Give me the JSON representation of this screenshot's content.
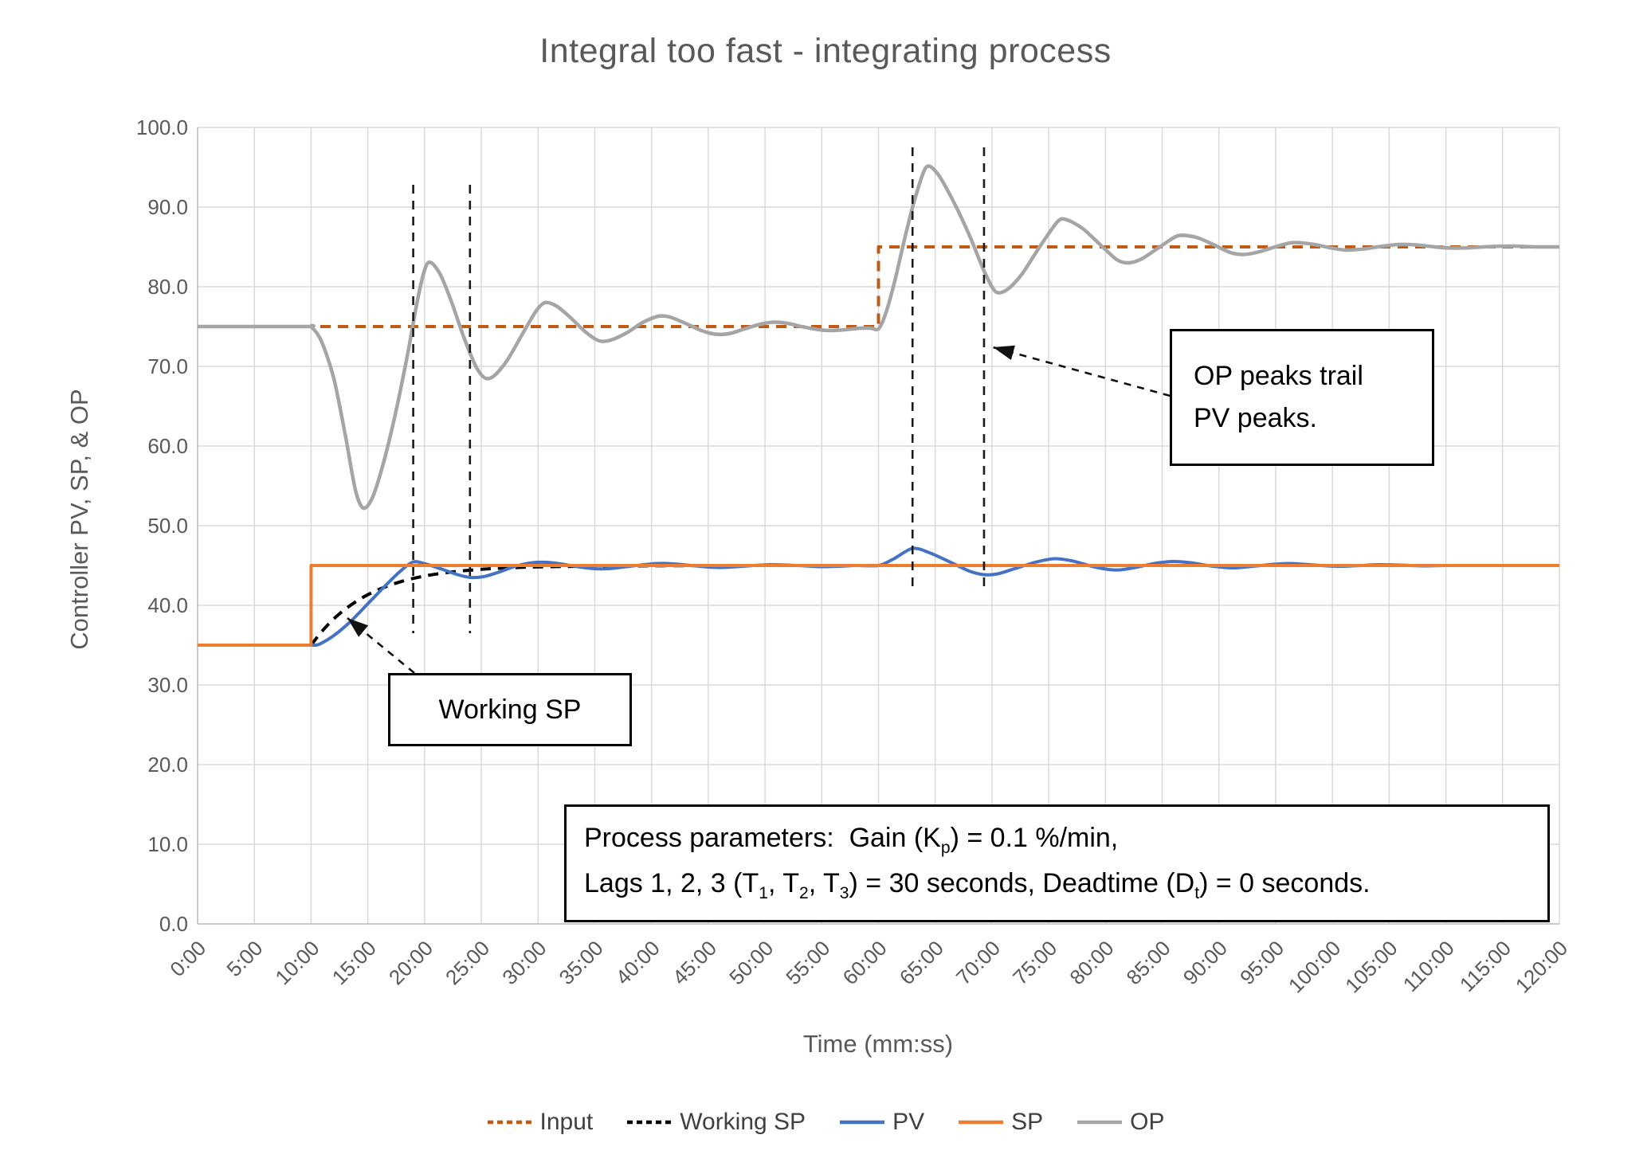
{
  "title": "Integral too fast - integrating process",
  "axes": {
    "x_title": "Time (mm:ss)",
    "y_title": "Controller PV, SP, & OP",
    "x_ticks": [
      "0:00",
      "5:00",
      "10:00",
      "15:00",
      "20:00",
      "25:00",
      "30:00",
      "35:00",
      "40:00",
      "45:00",
      "50:00",
      "55:00",
      "60:00",
      "65:00",
      "70:00",
      "75:00",
      "80:00",
      "85:00",
      "90:00",
      "95:00",
      "100:00",
      "105:00",
      "110:00",
      "115:00",
      "120:00"
    ],
    "y_ticks": [
      "0.0",
      "10.0",
      "20.0",
      "30.0",
      "40.0",
      "50.0",
      "60.0",
      "70.0",
      "80.0",
      "90.0",
      "100.0"
    ]
  },
  "colors": {
    "input": "#BE5B17",
    "working_sp": "#000000",
    "pv": "#4472C4",
    "sp": "#ED7D31",
    "op": "#A5A5A5",
    "gridline": "#D9D9D9",
    "axis_text": "#595959",
    "marker_line": "#1a1a1a"
  },
  "chart_data": {
    "type": "line",
    "title": "Integral too fast - integrating process",
    "xlabel": "Time (mm:ss)",
    "ylabel": "Controller PV, SP, & OP",
    "x_minutes_range": [
      0,
      120
    ],
    "x_tick_step_minutes": 5,
    "ylim": [
      0,
      100
    ],
    "y_tick_step": 10,
    "grid": true,
    "legend_position": "bottom",
    "series": [
      {
        "name": "Input",
        "color": "#BE5B17",
        "style": "dashed",
        "interp": "linear",
        "width": 4,
        "points": [
          [
            0,
            75
          ],
          [
            60,
            75
          ],
          [
            60,
            85
          ],
          [
            120,
            85
          ]
        ]
      },
      {
        "name": "Working SP",
        "color": "#000000",
        "style": "dashed",
        "interp": "smooth",
        "width": 4,
        "points": [
          [
            10,
            35
          ],
          [
            11,
            36.81
          ],
          [
            12,
            38.3
          ],
          [
            13,
            39.51
          ],
          [
            14,
            40.51
          ],
          [
            15,
            41.33
          ],
          [
            16,
            42.01
          ],
          [
            17,
            42.56
          ],
          [
            18,
            43.01
          ],
          [
            19,
            43.38
          ],
          [
            20,
            43.68
          ],
          [
            21,
            43.92
          ],
          [
            22,
            44.12
          ],
          [
            23,
            44.28
          ],
          [
            24,
            44.41
          ],
          [
            25,
            44.52
          ],
          [
            26,
            44.61
          ],
          [
            27,
            44.68
          ],
          [
            28,
            44.74
          ],
          [
            29,
            44.79
          ],
          [
            30,
            44.82
          ],
          [
            32,
            44.87
          ],
          [
            34,
            44.9
          ],
          [
            36,
            44.92
          ],
          [
            38,
            44.94
          ],
          [
            40,
            44.96
          ],
          [
            43,
            44.98
          ],
          [
            46,
            45
          ],
          [
            60,
            45
          ],
          [
            120,
            45
          ]
        ]
      },
      {
        "name": "PV",
        "color": "#4472C4",
        "style": "solid",
        "interp": "smooth",
        "width": 4,
        "points": [
          [
            0,
            35
          ],
          [
            9.8,
            35
          ],
          [
            10,
            35
          ],
          [
            10.7,
            35.1
          ],
          [
            12,
            36.2
          ],
          [
            13.5,
            38.0
          ],
          [
            15,
            40.2
          ],
          [
            16.5,
            42.4
          ],
          [
            17.8,
            44.2
          ],
          [
            19,
            45.45
          ],
          [
            20.2,
            45.15
          ],
          [
            21.5,
            44.55
          ],
          [
            22.8,
            43.9
          ],
          [
            24,
            43.5
          ],
          [
            25.2,
            43.6
          ],
          [
            26.5,
            44.15
          ],
          [
            28,
            44.9
          ],
          [
            29.5,
            45.35
          ],
          [
            30.8,
            45.4
          ],
          [
            32,
            45.2
          ],
          [
            33.5,
            44.85
          ],
          [
            35,
            44.6
          ],
          [
            36.2,
            44.6
          ],
          [
            37.5,
            44.8
          ],
          [
            39,
            45.05
          ],
          [
            40.5,
            45.25
          ],
          [
            42,
            45.2
          ],
          [
            43.5,
            45.0
          ],
          [
            45,
            44.8
          ],
          [
            46.2,
            44.75
          ],
          [
            47.5,
            44.85
          ],
          [
            49,
            45.0
          ],
          [
            50.5,
            45.1
          ],
          [
            52,
            45.05
          ],
          [
            53.5,
            44.95
          ],
          [
            55,
            44.85
          ],
          [
            56.5,
            44.9
          ],
          [
            58,
            45.0
          ],
          [
            60,
            45.0
          ],
          [
            61.3,
            45.8
          ],
          [
            63,
            47.15
          ],
          [
            64.5,
            46.6
          ],
          [
            66.5,
            45.3
          ],
          [
            68,
            44.3
          ],
          [
            69.3,
            43.85
          ],
          [
            70.5,
            43.95
          ],
          [
            72,
            44.6
          ],
          [
            73.8,
            45.4
          ],
          [
            75.5,
            45.85
          ],
          [
            77,
            45.6
          ],
          [
            78.8,
            44.9
          ],
          [
            80.3,
            44.5
          ],
          [
            81.3,
            44.45
          ],
          [
            82.8,
            44.8
          ],
          [
            84.5,
            45.3
          ],
          [
            86,
            45.5
          ],
          [
            87.5,
            45.35
          ],
          [
            89,
            45.0
          ],
          [
            90.5,
            44.75
          ],
          [
            91.5,
            44.7
          ],
          [
            93,
            44.9
          ],
          [
            94.8,
            45.15
          ],
          [
            96.3,
            45.25
          ],
          [
            98,
            45.1
          ],
          [
            99.5,
            44.95
          ],
          [
            101,
            44.9
          ],
          [
            102.5,
            45.0
          ],
          [
            104,
            45.1
          ],
          [
            106,
            45.05
          ],
          [
            108,
            44.95
          ],
          [
            110,
            45.0
          ],
          [
            113,
            45.0
          ],
          [
            116,
            45.0
          ],
          [
            120,
            45.0
          ]
        ]
      },
      {
        "name": "SP",
        "color": "#ED7D31",
        "style": "solid",
        "interp": "linear",
        "width": 4,
        "points": [
          [
            0,
            35
          ],
          [
            10,
            35
          ],
          [
            10,
            45
          ],
          [
            120,
            45
          ]
        ]
      },
      {
        "name": "OP",
        "color": "#A5A5A5",
        "style": "solid",
        "interp": "smooth",
        "width": 4.5,
        "points": [
          [
            0,
            75
          ],
          [
            9.5,
            75
          ],
          [
            10,
            75
          ],
          [
            10.9,
            73.2
          ],
          [
            12,
            68.5
          ],
          [
            13,
            61.5
          ],
          [
            13.9,
            54.5
          ],
          [
            14.6,
            52.2
          ],
          [
            15.4,
            53.5
          ],
          [
            16.4,
            58
          ],
          [
            17.5,
            64.5
          ],
          [
            18.5,
            71.5
          ],
          [
            19.4,
            78.5
          ],
          [
            20.1,
            82.5
          ],
          [
            20.6,
            83
          ],
          [
            21.4,
            81.5
          ],
          [
            22.4,
            78
          ],
          [
            23.5,
            73.5
          ],
          [
            24.6,
            69.8
          ],
          [
            25.4,
            68.5
          ],
          [
            26.2,
            68.9
          ],
          [
            27.3,
            70.8
          ],
          [
            28.6,
            74
          ],
          [
            29.8,
            76.9
          ],
          [
            30.6,
            78
          ],
          [
            31.6,
            77.6
          ],
          [
            32.8,
            76.2
          ],
          [
            34.2,
            74.3
          ],
          [
            35.4,
            73.2
          ],
          [
            36.4,
            73.3
          ],
          [
            37.8,
            74.2
          ],
          [
            39.2,
            75.5
          ],
          [
            40.6,
            76.3
          ],
          [
            41.6,
            76.2
          ],
          [
            43,
            75.4
          ],
          [
            44.4,
            74.5
          ],
          [
            45.6,
            74.05
          ],
          [
            46.8,
            74.1
          ],
          [
            48.2,
            74.7
          ],
          [
            49.6,
            75.3
          ],
          [
            50.8,
            75.55
          ],
          [
            52,
            75.4
          ],
          [
            53.4,
            74.95
          ],
          [
            54.8,
            74.6
          ],
          [
            55.8,
            74.5
          ],
          [
            57,
            74.6
          ],
          [
            58.4,
            74.8
          ],
          [
            59.3,
            74.8
          ],
          [
            60,
            74.7
          ],
          [
            60.6,
            76.5
          ],
          [
            61.4,
            80.5
          ],
          [
            62.3,
            86
          ],
          [
            63.2,
            91
          ],
          [
            64.2,
            95
          ],
          [
            65.2,
            94.2
          ],
          [
            66.5,
            91
          ],
          [
            68,
            86.5
          ],
          [
            69.3,
            82
          ],
          [
            70.3,
            79.4
          ],
          [
            71.3,
            79.6
          ],
          [
            72.6,
            81.5
          ],
          [
            74.2,
            85
          ],
          [
            75.8,
            88.2
          ],
          [
            76.6,
            88.4
          ],
          [
            78,
            87.3
          ],
          [
            79.6,
            85.2
          ],
          [
            81,
            83.4
          ],
          [
            82,
            83
          ],
          [
            83.2,
            83.5
          ],
          [
            85,
            85.2
          ],
          [
            86.4,
            86.4
          ],
          [
            88,
            86.2
          ],
          [
            89.5,
            85.3
          ],
          [
            91,
            84.3
          ],
          [
            92.2,
            84.05
          ],
          [
            93.6,
            84.4
          ],
          [
            95.4,
            85.2
          ],
          [
            96.6,
            85.55
          ],
          [
            98.2,
            85.35
          ],
          [
            99.8,
            84.9
          ],
          [
            101.2,
            84.6
          ],
          [
            102.8,
            84.75
          ],
          [
            104.2,
            85.05
          ],
          [
            105.8,
            85.3
          ],
          [
            107.4,
            85.25
          ],
          [
            109,
            85.0
          ],
          [
            110.6,
            84.85
          ],
          [
            112.2,
            84.9
          ],
          [
            114,
            85.05
          ],
          [
            116,
            85.1
          ],
          [
            118,
            85.0
          ],
          [
            120,
            85.0
          ]
        ]
      }
    ],
    "pv_peak_marker_lines": [
      {
        "t": 19.0,
        "v_from": 36.5,
        "v_to": 92.8
      },
      {
        "t": 24.0,
        "v_from": 36.5,
        "v_to": 92.8
      },
      {
        "t": 63.0,
        "v_from": 41.5,
        "v_to": 97.5
      },
      {
        "t": 69.3,
        "v_from": 41.5,
        "v_to": 97.5
      }
    ]
  },
  "annotations": {
    "working_sp_label": {
      "text": "Working SP",
      "arrow_from_tv": [
        19.1,
        31.5
      ],
      "arrow_to_tv": [
        13.2,
        38.4
      ]
    },
    "op_peaks_note": {
      "line1": "OP peaks trail",
      "line2": "PV peaks.",
      "arrow_from_tv": [
        85.7,
        66.3
      ],
      "arrow_to_tv": [
        70.1,
        72.4
      ]
    },
    "process_parameters": {
      "lines": [
        {
          "parts": [
            {
              "text": "Process parameters:  Gain (K"
            },
            {
              "sub": "p"
            },
            {
              "text": ") = 0.1 %/min,"
            }
          ]
        },
        {
          "parts": [
            {
              "text": "Lags 1, 2, 3 (T"
            },
            {
              "sub": "1"
            },
            {
              "text": ", T"
            },
            {
              "sub": "2"
            },
            {
              "text": ", T"
            },
            {
              "sub": "3"
            },
            {
              "text": ") = 30 seconds, Deadtime (D"
            },
            {
              "sub": "t"
            },
            {
              "text": ") = 0 seconds."
            }
          ]
        }
      ]
    }
  },
  "legend": {
    "items": [
      {
        "label": "Input",
        "color": "#BE5B17",
        "style": "dashed"
      },
      {
        "label": "Working SP",
        "color": "#000000",
        "style": "dashed"
      },
      {
        "label": "PV",
        "color": "#4472C4",
        "style": "solid"
      },
      {
        "label": "SP",
        "color": "#ED7D31",
        "style": "solid"
      },
      {
        "label": "OP",
        "color": "#A5A5A5",
        "style": "solid"
      }
    ]
  }
}
